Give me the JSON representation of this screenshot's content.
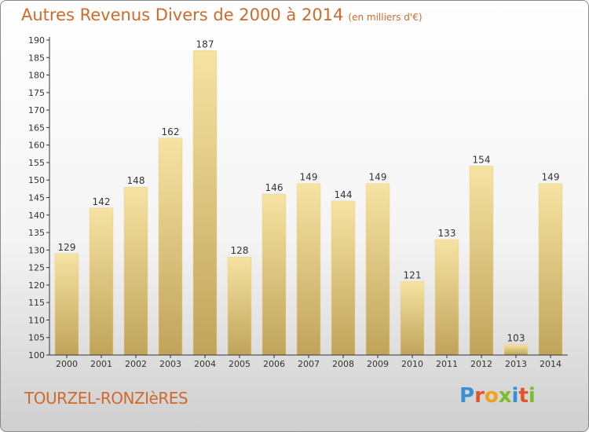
{
  "title": "Autres Revenus Divers de 2000 à 2014",
  "subtitle": "(en milliers d'€)",
  "commune": "TOURZEL-RONZIèRES",
  "logo": {
    "letters": [
      "P",
      "r",
      "o",
      "x",
      "i",
      "t",
      "i"
    ],
    "colors": [
      "#3b8fd9",
      "#e0562a",
      "#f0a21c",
      "#7bbd2b",
      "#3b8fd9",
      "#e0562a",
      "#7bbd2b"
    ]
  },
  "colors": {
    "title": "#d06a2a",
    "bar_light": "#f6e3a2",
    "bar_dark": "#c0a45a",
    "axis": "#333333",
    "grid": "#cccccc"
  },
  "chart_data": {
    "type": "bar",
    "categories": [
      "2000",
      "2001",
      "2002",
      "2003",
      "2004",
      "2005",
      "2006",
      "2007",
      "2008",
      "2009",
      "2010",
      "2011",
      "2012",
      "2013",
      "2014"
    ],
    "values": [
      129,
      142,
      148,
      162,
      187,
      128,
      146,
      149,
      144,
      149,
      121,
      133,
      154,
      103,
      149
    ],
    "y_ticks": [
      100,
      105,
      110,
      115,
      120,
      125,
      130,
      135,
      140,
      145,
      150,
      155,
      160,
      165,
      170,
      175,
      180,
      185,
      190
    ],
    "ylim": [
      100,
      190
    ],
    "grid": false
  }
}
